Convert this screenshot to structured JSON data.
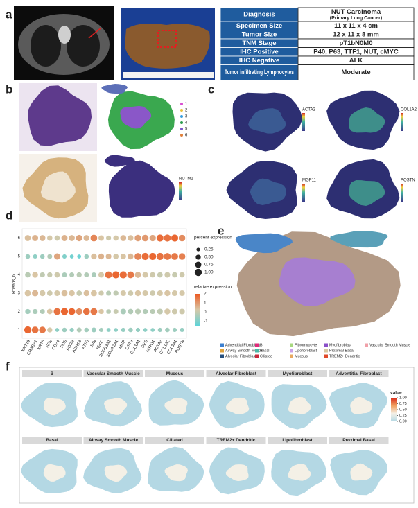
{
  "panel_labels": [
    "a",
    "b",
    "c",
    "d",
    "e",
    "f"
  ],
  "table": {
    "rows": [
      [
        "Diagnosis",
        "NUT Carcinoma",
        "(Primary Lung Cancer)"
      ],
      [
        "Specimen Size",
        "11 x 11 x 4 cm"
      ],
      [
        "Tumor Size",
        "12 x 11 x 8 mm"
      ],
      [
        "TNM Stage",
        "pT1bN0M0"
      ],
      [
        "IHC Positive",
        "P40, P63, TTF1, NUT, cMYC"
      ],
      [
        "IHC Negative",
        "ALK"
      ],
      [
        "Tumor infiltrating Lymphocytes",
        "Moderate"
      ]
    ]
  },
  "panel_b": {
    "cluster_legend": [
      "1",
      "2",
      "3",
      "4",
      "5",
      "6"
    ],
    "cluster_colors": [
      "#d94fd1",
      "#e8c23a",
      "#3aa0e0",
      "#2e9e4f",
      "#7b57c8",
      "#e0803a"
    ],
    "feature_label": "NUTM1"
  },
  "panel_c": {
    "feature_labels": [
      "ACTA2",
      "COL1A2",
      "MGP11",
      "POSTN"
    ]
  },
  "chart_data": {
    "type": "dot",
    "ylabel": "kmeans_6",
    "categories": [
      "KRT19",
      "CRABP1",
      "KRT5",
      "SFN",
      "CD24",
      "FOS",
      "FOSB",
      "ADH1B",
      "ATF3",
      "JUN",
      "IGKC",
      "SCGB3A1",
      "SCGB1A1",
      "MGP",
      "CST3",
      "COL1A1",
      "DES",
      "MYH11",
      "ACTA2",
      "COL1A2",
      "COL3A1",
      "POSTN"
    ],
    "series": [
      {
        "name": "1",
        "sizes": [
          0.95,
          0.9,
          0.85,
          0.5,
          0.3,
          0.4,
          0.35,
          0.45,
          0.4,
          0.45,
          0.35,
          0.3,
          0.3,
          0.35,
          0.4,
          0.35,
          0.3,
          0.3,
          0.35,
          0.4,
          0.35,
          0.35
        ],
        "values": [
          1.8,
          1.6,
          1.5,
          0.2,
          -0.8,
          -0.6,
          -0.7,
          -0.3,
          -0.5,
          -0.6,
          -0.5,
          -0.8,
          -0.8,
          -0.7,
          -0.6,
          -0.7,
          -0.8,
          -0.8,
          -0.6,
          -0.5,
          -0.6,
          -0.7
        ]
      },
      {
        "name": "2",
        "sizes": [
          0.5,
          0.5,
          0.45,
          0.55,
          0.9,
          0.95,
          0.9,
          0.8,
          0.85,
          0.9,
          0.5,
          0.4,
          0.45,
          0.6,
          0.55,
          0.6,
          0.5,
          0.5,
          0.6,
          0.65,
          0.6,
          0.6
        ],
        "values": [
          -0.5,
          -0.4,
          -0.3,
          0.3,
          1.6,
          1.8,
          1.8,
          1.2,
          1.6,
          1.5,
          0.3,
          -0.2,
          0.0,
          -0.4,
          -0.3,
          -0.2,
          -0.3,
          -0.2,
          -0.1,
          0.2,
          0.1,
          0.1
        ]
      },
      {
        "name": "3",
        "sizes": [
          0.7,
          0.75,
          0.65,
          0.55,
          0.6,
          0.7,
          0.65,
          0.55,
          0.65,
          0.7,
          0.5,
          0.45,
          0.5,
          0.6,
          0.55,
          0.65,
          0.6,
          0.55,
          0.6,
          0.65,
          0.6,
          0.6
        ],
        "values": [
          0.3,
          0.5,
          0.2,
          0.1,
          0.2,
          0.4,
          0.3,
          0.0,
          0.4,
          0.3,
          0.1,
          -0.2,
          -0.1,
          0.2,
          0.1,
          0.3,
          0.2,
          0.1,
          0.2,
          0.3,
          0.2,
          0.2
        ]
      },
      {
        "name": "4",
        "sizes": [
          0.55,
          0.65,
          0.5,
          0.5,
          0.55,
          0.45,
          0.45,
          0.5,
          0.45,
          0.45,
          0.6,
          0.9,
          0.95,
          0.95,
          0.9,
          0.7,
          0.6,
          0.55,
          0.55,
          0.6,
          0.55,
          0.55
        ],
        "values": [
          -0.2,
          0.3,
          -0.1,
          0.0,
          0.1,
          -0.4,
          -0.3,
          -0.2,
          -0.3,
          -0.4,
          0.2,
          1.6,
          1.8,
          1.7,
          1.5,
          0.5,
          0.2,
          0.1,
          0.0,
          0.1,
          0.0,
          0.1
        ]
      },
      {
        "name": "5",
        "sizes": [
          0.4,
          0.35,
          0.4,
          0.45,
          0.75,
          0.35,
          0.3,
          0.3,
          0.4,
          0.65,
          0.65,
          0.6,
          0.55,
          0.6,
          0.65,
          0.9,
          0.95,
          0.95,
          0.95,
          0.9,
          0.9,
          0.85
        ],
        "values": [
          -0.6,
          -0.8,
          -0.6,
          -0.3,
          0.8,
          -1.0,
          -1.2,
          -1.3,
          -0.6,
          0.4,
          0.6,
          0.5,
          0.2,
          0.3,
          0.5,
          1.3,
          1.7,
          1.8,
          1.6,
          1.5,
          1.5,
          1.4
        ]
      },
      {
        "name": "6",
        "sizes": [
          0.7,
          0.75,
          0.7,
          0.55,
          0.55,
          0.75,
          0.7,
          0.8,
          0.7,
          0.9,
          0.6,
          0.5,
          0.55,
          0.7,
          0.65,
          0.85,
          0.85,
          0.8,
          0.95,
          0.95,
          0.95,
          0.85
        ],
        "values": [
          0.4,
          0.6,
          0.5,
          0.2,
          0.1,
          0.6,
          0.5,
          0.8,
          0.5,
          1.3,
          0.3,
          0.1,
          0.2,
          0.5,
          0.4,
          0.9,
          1.0,
          0.8,
          1.7,
          1.6,
          1.8,
          1.2
        ]
      }
    ],
    "size_legend": {
      "title": "percent expression",
      "ticks": [
        {
          "value": 0.25,
          "label": "0.25"
        },
        {
          "value": 0.5,
          "label": "0.50"
        },
        {
          "value": 0.75,
          "label": "0.75"
        },
        {
          "value": 1,
          "label": "1.00"
        }
      ]
    },
    "color_legend": {
      "title": "relative expression",
      "lim": [
        -1.5,
        2
      ],
      "ticks": [
        2,
        1,
        0,
        -1
      ],
      "colors": [
        "#5ed3d8",
        "#d8c8a8",
        "#ec5a22"
      ]
    }
  },
  "panel_e": {
    "legend": [
      {
        "name": "Adventitial Fibroblast",
        "color": "#3a7fd0"
      },
      {
        "name": "Airway Smooth Muscle",
        "color": "#e0a23a"
      },
      {
        "name": "Alveolar Fibroblast",
        "color": "#27507e"
      },
      {
        "name": "B",
        "color": "#e02a7a"
      },
      {
        "name": "Basal",
        "color": "#48b9a6"
      },
      {
        "name": "Ciliated",
        "color": "#c8283a"
      },
      {
        "name": "Fibromyocyte",
        "color": "#a8d880"
      },
      {
        "name": "Lipofibroblast",
        "color": "#c9a0e8"
      },
      {
        "name": "Mucous",
        "color": "#e8a860"
      },
      {
        "name": "Myofibroblast",
        "color": "#8a4fc8"
      },
      {
        "name": "Proximal Basal",
        "color": "#d8c8a0"
      },
      {
        "name": "TREM2+ Dendritic",
        "color": "#e04a2a"
      },
      {
        "name": "Vascular Smooth Muscle",
        "color": "#f0a0a8"
      }
    ]
  },
  "panel_f": {
    "titles": [
      "B",
      "Vascular Smooth Muscle",
      "Mucous",
      "Alveolar Fibroblast",
      "Myofibroblast",
      "Adventitial Fibroblast",
      "Basal",
      "Airway Smooth Muscle",
      "Ciliated",
      "TREM2+ Dendritic",
      "Lipofibroblast",
      "Proximal Basal"
    ],
    "colorbar": {
      "title": "value",
      "lim": [
        0,
        1
      ],
      "ticks": [
        {
          "value": 1,
          "label": "1.00"
        },
        {
          "value": 0.75,
          "label": "0.75"
        },
        {
          "value": 0.5,
          "label": "0.50"
        },
        {
          "value": 0.25,
          "label": "0.25"
        },
        {
          "value": 0,
          "label": "0.00"
        }
      ],
      "colors": [
        "#b4d8e4",
        "#f4f0e6",
        "#f0a060",
        "#d82a1a"
      ]
    }
  }
}
